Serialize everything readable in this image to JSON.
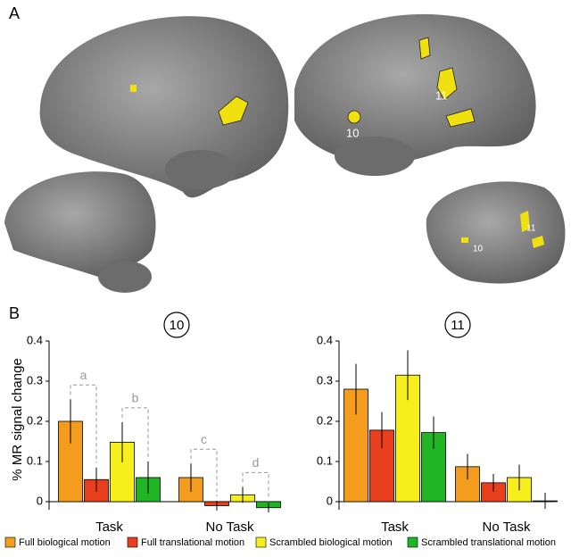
{
  "panels": [
    "A",
    "B"
  ],
  "brain_labels": {
    "large": [
      "10",
      "11"
    ],
    "small": [
      "10",
      "11"
    ]
  },
  "legend": [
    {
      "name": "Full biological motion",
      "color": "#f39c1e"
    },
    {
      "name": "Full translational motion",
      "color": "#e8401c"
    },
    {
      "name": "Scrambled biological motion",
      "color": "#f7ef1c"
    },
    {
      "name": "Scrambled translational motion",
      "color": "#1fb524"
    }
  ],
  "ylabel": "% MR signal change",
  "chart_data": [
    {
      "type": "bar",
      "title": "10",
      "categories": [
        "Task",
        "No Task"
      ],
      "ylim": [
        -0.02,
        0.4
      ],
      "yticks": [
        0,
        0.1,
        0.2,
        0.3,
        0.4
      ],
      "annotations": [
        "a",
        "b",
        "c",
        "d"
      ],
      "series": [
        {
          "values": [
            0.2,
            0.06
          ],
          "errors": [
            0.055,
            0.035
          ]
        },
        {
          "values": [
            0.055,
            -0.01
          ],
          "errors": [
            0.03,
            0.012
          ]
        },
        {
          "values": [
            0.148,
            0.017
          ],
          "errors": [
            0.05,
            0.02
          ]
        },
        {
          "values": [
            0.06,
            -0.015
          ],
          "errors": [
            0.04,
            0.012
          ]
        }
      ]
    },
    {
      "type": "bar",
      "title": "11",
      "categories": [
        "Task",
        "No Task"
      ],
      "ylim": [
        -0.02,
        0.4
      ],
      "yticks": [
        0,
        0.1,
        0.2,
        0.3,
        0.4
      ],
      "series": [
        {
          "values": [
            0.28,
            0.087
          ],
          "errors": [
            0.063,
            0.032
          ]
        },
        {
          "values": [
            0.178,
            0.047
          ],
          "errors": [
            0.045,
            0.022
          ]
        },
        {
          "values": [
            0.315,
            0.06
          ],
          "errors": [
            0.062,
            0.032
          ]
        },
        {
          "values": [
            0.172,
            0.002
          ],
          "errors": [
            0.04,
            0.02
          ]
        }
      ]
    }
  ]
}
